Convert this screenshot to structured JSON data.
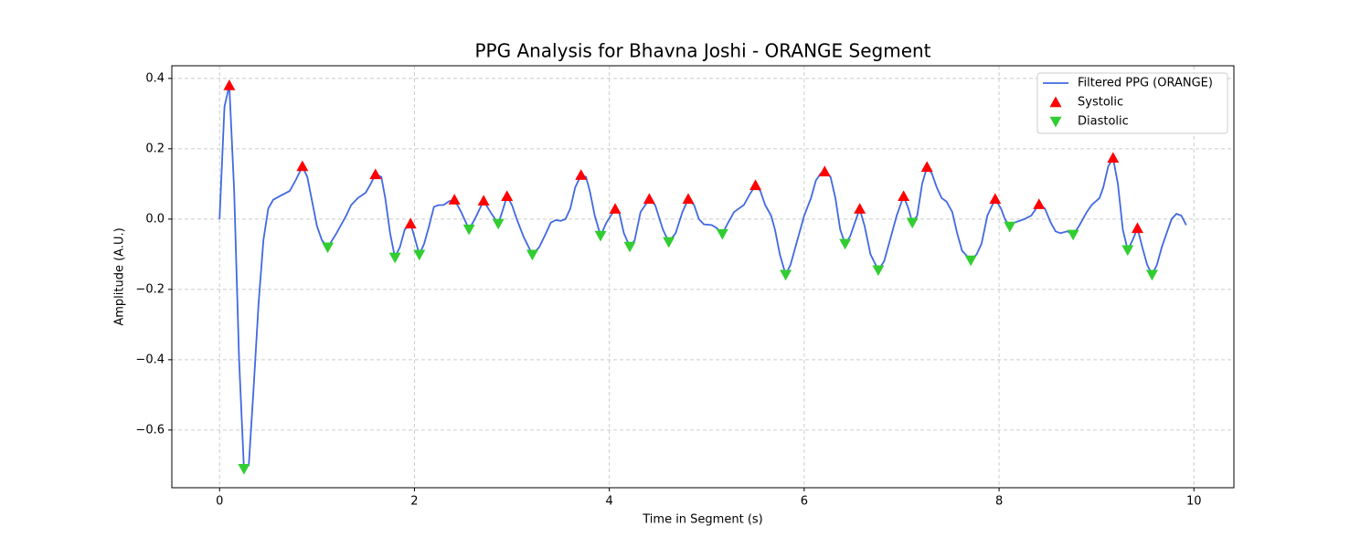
{
  "chart_data": {
    "type": "line",
    "title": "PPG Analysis for Bhavna Joshi - ORANGE Segment",
    "x_label": "Time in Segment (s)",
    "y_label": "Amplitude (A.U.)",
    "xlim": [
      -0.49,
      10.41
    ],
    "ylim": [
      -0.764,
      0.436
    ],
    "xticks": [
      0,
      2,
      4,
      6,
      8,
      10
    ],
    "yticks": [
      {
        "value": -0.6,
        "label": "−0.6"
      },
      {
        "value": -0.4,
        "label": "−0.4"
      },
      {
        "value": -0.2,
        "label": "−0.2"
      },
      {
        "value": 0,
        "label": "0.0"
      },
      0.2,
      0.4
    ],
    "grid": true,
    "legend": "upper right",
    "series": [
      {
        "name": "Filtered PPG (ORANGE)",
        "color": "#4169e1",
        "marker": "line",
        "x": [
          0,
          0.05,
          0.1,
          0.15,
          0.2,
          0.25,
          0.3,
          0.35,
          0.4,
          0.45,
          0.5,
          0.55,
          0.65,
          0.72,
          0.78,
          0.85,
          0.9,
          0.95,
          1.0,
          1.05,
          1.11,
          1.2,
          1.3,
          1.35,
          1.42,
          1.5,
          1.55,
          1.6,
          1.66,
          1.7,
          1.75,
          1.8,
          1.85,
          1.9,
          1.96,
          2.0,
          2.05,
          2.1,
          2.15,
          2.2,
          2.25,
          2.3,
          2.35,
          2.41,
          2.48,
          2.56,
          2.62,
          2.71,
          2.78,
          2.86,
          2.9,
          2.95,
          3.0,
          3.05,
          3.12,
          3.21,
          3.28,
          3.35,
          3.4,
          3.45,
          3.5,
          3.55,
          3.6,
          3.65,
          3.71,
          3.76,
          3.8,
          3.85,
          3.91,
          3.97,
          4.06,
          4.1,
          4.15,
          4.21,
          4.26,
          4.32,
          4.41,
          4.47,
          4.55,
          4.61,
          4.68,
          4.75,
          4.81,
          4.87,
          4.92,
          4.97,
          5.05,
          5.1,
          5.16,
          5.22,
          5.28,
          5.33,
          5.38,
          5.44,
          5.5,
          5.55,
          5.6,
          5.66,
          5.7,
          5.75,
          5.81,
          5.86,
          5.92,
          6.0,
          6.07,
          6.12,
          6.17,
          6.21,
          6.27,
          6.32,
          6.37,
          6.42,
          6.47,
          6.52,
          6.57,
          6.62,
          6.68,
          6.76,
          6.82,
          6.88,
          6.95,
          7.02,
          7.07,
          7.11,
          7.16,
          7.21,
          7.26,
          7.31,
          7.36,
          7.41,
          7.46,
          7.52,
          7.57,
          7.62,
          7.71,
          7.77,
          7.82,
          7.88,
          7.96,
          8.02,
          8.06,
          8.11,
          8.16,
          8.26,
          8.33,
          8.41,
          8.47,
          8.53,
          8.58,
          8.63,
          8.7,
          8.76,
          8.82,
          8.9,
          8.95,
          9.03,
          9.07,
          9.12,
          9.17,
          9.22,
          9.27,
          9.32,
          9.37,
          9.42,
          9.47,
          9.52,
          9.57,
          9.62,
          9.67,
          9.72,
          9.77,
          9.82,
          9.87,
          9.92
        ],
        "values": [
          0,
          0.32,
          0.38,
          0.08,
          -0.4,
          -0.71,
          -0.7,
          -0.48,
          -0.24,
          -0.06,
          0.03,
          0.055,
          0.07,
          0.08,
          0.11,
          0.15,
          0.12,
          0.05,
          -0.02,
          -0.06,
          -0.08,
          -0.04,
          0.01,
          0.04,
          0.06,
          0.075,
          0.1,
          0.127,
          0.12,
          0.06,
          -0.04,
          -0.109,
          -0.08,
          -0.03,
          -0.013,
          -0.05,
          -0.101,
          -0.07,
          -0.02,
          0.035,
          0.04,
          0.04,
          0.05,
          0.055,
          0.02,
          -0.029,
          0.0,
          0.052,
          0.02,
          -0.013,
          0.02,
          0.065,
          0.04,
          0.0,
          -0.05,
          -0.101,
          -0.08,
          -0.04,
          -0.01,
          -0.003,
          -0.005,
          0.0,
          0.03,
          0.09,
          0.125,
          0.12,
          0.08,
          0.01,
          -0.047,
          -0.01,
          0.029,
          0.02,
          -0.04,
          -0.078,
          -0.06,
          0.02,
          0.057,
          0.04,
          -0.03,
          -0.065,
          -0.04,
          0.02,
          0.057,
          0.04,
          0.0,
          -0.015,
          -0.017,
          -0.025,
          -0.042,
          -0.01,
          0.02,
          0.03,
          0.04,
          0.07,
          0.096,
          0.08,
          0.04,
          0.01,
          -0.03,
          -0.1,
          -0.158,
          -0.13,
          -0.07,
          0.01,
          0.06,
          0.11,
          0.13,
          0.135,
          0.12,
          0.06,
          -0.03,
          -0.07,
          -0.05,
          -0.01,
          0.029,
          -0.02,
          -0.1,
          -0.145,
          -0.12,
          -0.06,
          0.01,
          0.065,
          0.03,
          -0.01,
          0.01,
          0.1,
          0.148,
          0.13,
          0.09,
          0.06,
          0.05,
          0.02,
          -0.04,
          -0.09,
          -0.117,
          -0.1,
          -0.07,
          0.01,
          0.057,
          0.03,
          0.0,
          -0.021,
          -0.01,
          0.0,
          0.01,
          0.042,
          0.03,
          -0.01,
          -0.035,
          -0.04,
          -0.035,
          -0.044,
          -0.02,
          0.02,
          0.04,
          0.06,
          0.09,
          0.15,
          0.174,
          0.1,
          -0.03,
          -0.088,
          -0.06,
          -0.026,
          -0.08,
          -0.13,
          -0.158,
          -0.13,
          -0.08,
          -0.04,
          0.0,
          0.015,
          0.01,
          -0.017
        ]
      },
      {
        "name": "Systolic",
        "color": "#ff0000",
        "marker": "triangle-up",
        "x": [
          0.1,
          0.85,
          1.6,
          1.96,
          2.41,
          2.71,
          2.95,
          3.71,
          4.06,
          4.41,
          4.81,
          5.5,
          6.21,
          6.57,
          7.02,
          7.26,
          7.96,
          8.41,
          9.17,
          9.42
        ],
        "values": [
          0.38,
          0.15,
          0.127,
          -0.013,
          0.055,
          0.052,
          0.065,
          0.125,
          0.029,
          0.057,
          0.057,
          0.096,
          0.135,
          0.029,
          0.065,
          0.148,
          0.057,
          0.042,
          0.174,
          -0.026
        ]
      },
      {
        "name": "Diastolic",
        "color": "#32cd32",
        "marker": "triangle-down",
        "x": [
          0.25,
          1.11,
          1.8,
          2.05,
          2.56,
          2.86,
          3.21,
          3.91,
          4.21,
          4.61,
          5.16,
          5.81,
          6.42,
          6.76,
          7.11,
          7.71,
          8.11,
          8.76,
          9.32,
          9.57
        ],
        "values": [
          -0.71,
          -0.08,
          -0.109,
          -0.101,
          -0.029,
          -0.013,
          -0.101,
          -0.047,
          -0.078,
          -0.065,
          -0.042,
          -0.158,
          -0.07,
          -0.145,
          -0.01,
          -0.117,
          -0.021,
          -0.044,
          -0.088,
          -0.158
        ]
      }
    ]
  }
}
